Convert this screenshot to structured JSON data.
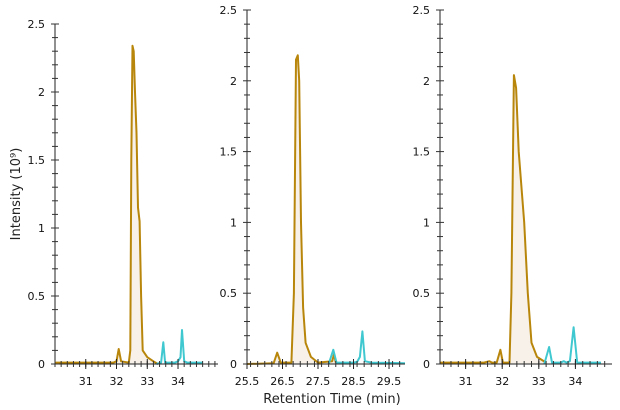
{
  "chart_data": {
    "xlabel": "Retention Time (min)",
    "ylabel": "Intensity (10⁹)",
    "colors": {
      "primary": "#b8860b",
      "secondary": "#40c8d0",
      "fill": "#f7f1ea"
    },
    "panels": [
      {
        "type": "line",
        "xlim": [
          30.0,
          35.3
        ],
        "ylim": [
          0,
          2.5
        ],
        "xticks": [
          31,
          32,
          33,
          34
        ],
        "xtick_labels": [
          "31",
          "32",
          "33",
          "34"
        ],
        "yticks": [
          0,
          0.5,
          1,
          1.5,
          2,
          2.5
        ],
        "ytick_labels": [
          "0",
          "0.5",
          "1",
          "1.5",
          "2",
          "2.5"
        ],
        "series": [
          {
            "color": "#b8860b",
            "filled": true,
            "x": [
              30.0,
              31.0,
              31.9,
              32.0,
              32.07,
              32.15,
              32.4,
              32.45,
              32.48,
              32.52,
              32.56,
              32.6,
              32.65,
              32.7,
              32.75,
              32.8,
              32.85,
              33.0,
              33.2,
              33.35
            ],
            "y": [
              0.01,
              0.01,
              0.01,
              0.02,
              0.11,
              0.02,
              0.01,
              0.1,
              1.5,
              2.34,
              2.3,
              2.0,
              1.7,
              1.15,
              1.05,
              0.5,
              0.1,
              0.05,
              0.02,
              0.0
            ]
          },
          {
            "color": "#40c8d0",
            "filled": false,
            "x": [
              33.3,
              33.45,
              33.52,
              33.58,
              33.9,
              34.0,
              34.08,
              34.13,
              34.2,
              34.3,
              34.8
            ],
            "y": [
              0,
              0.01,
              0.16,
              0.01,
              0.01,
              0.02,
              0.05,
              0.25,
              0.02,
              0.01,
              0.01
            ]
          }
        ]
      },
      {
        "type": "line",
        "xlim": [
          25.5,
          29.95
        ],
        "ylim": [
          0,
          2.5
        ],
        "xticks": [
          25.5,
          26.5,
          27.5,
          28.5,
          29.5
        ],
        "xtick_labels": [
          "25.5",
          "26.5",
          "27.5",
          "28.5",
          "29.5"
        ],
        "yticks": [
          0,
          0.5,
          1,
          1.5,
          2,
          2.5
        ],
        "ytick_labels": [
          "0",
          "0.5",
          "1",
          "1.5",
          "2",
          "2.5"
        ],
        "series": [
          {
            "color": "#b8860b",
            "filled": true,
            "x": [
              25.5,
              26.25,
              26.35,
              26.45,
              26.75,
              26.82,
              26.88,
              26.93,
              26.97,
              27.02,
              27.08,
              27.15,
              27.3,
              27.5,
              27.9,
              27.95,
              28.0
            ],
            "y": [
              0,
              0.005,
              0.08,
              0.01,
              0.01,
              0.5,
              2.15,
              2.18,
              2.0,
              1.0,
              0.4,
              0.15,
              0.05,
              0.01,
              0.02,
              0.07,
              0.01
            ]
          },
          {
            "color": "#40c8d0",
            "filled": false,
            "x": [
              27.8,
              27.93,
              28.02,
              28.5,
              28.6,
              28.68,
              28.75,
              28.82,
              29.0,
              29.95
            ],
            "y": [
              0,
              0.1,
              0.01,
              0.01,
              0.015,
              0.05,
              0.23,
              0.02,
              0.01,
              0.005
            ]
          }
        ]
      },
      {
        "type": "line",
        "xlim": [
          30.3,
          35.0
        ],
        "ylim": [
          0,
          2.5
        ],
        "xticks": [
          31,
          32,
          33,
          34
        ],
        "xtick_labels": [
          "31",
          "32",
          "33",
          "34"
        ],
        "yticks": [
          0,
          0.5,
          1,
          1.5,
          2,
          2.5
        ],
        "ytick_labels": [
          "0",
          "0.5",
          "1",
          "1.5",
          "2",
          "2.5"
        ],
        "series": [
          {
            "color": "#b8860b",
            "filled": true,
            "x": [
              30.3,
              31.5,
              31.65,
              31.72,
              31.85,
              31.95,
              32.02,
              32.2,
              32.25,
              32.32,
              32.38,
              32.45,
              32.6,
              32.7,
              32.8,
              32.95,
              33.2
            ],
            "y": [
              0.01,
              0.01,
              0.02,
              0.01,
              0.01,
              0.1,
              0.01,
              0.01,
              0.5,
              2.04,
              1.95,
              1.5,
              1.0,
              0.5,
              0.15,
              0.05,
              0.01
            ]
          },
          {
            "color": "#40c8d0",
            "filled": false,
            "x": [
              33.15,
              33.28,
              33.36,
              33.6,
              33.68,
              33.76,
              33.85,
              33.95,
              34.05,
              34.7
            ],
            "y": [
              0,
              0.12,
              0.01,
              0.01,
              0.02,
              0.01,
              0.02,
              0.26,
              0.01,
              0.01
            ]
          }
        ]
      }
    ]
  }
}
